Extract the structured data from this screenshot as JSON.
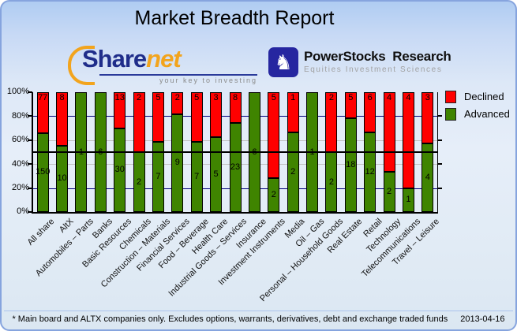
{
  "header": {
    "title": "Market Breadth Report"
  },
  "logos": {
    "sharenet": {
      "part1": "Share",
      "part2": "net",
      "tagline": "your key to investing"
    },
    "powerstocks": {
      "name": "PowerStocks  Research",
      "tagline": "Equities Investment Sciences",
      "icon": "knight-chess-piece"
    }
  },
  "chart_data": {
    "type": "bar",
    "stacked": true,
    "stacking": "percent",
    "title": "Market Breadth Report",
    "categories": [
      "All share",
      "AltX",
      "Automobiles – Parts",
      "Banks",
      "Basic Resources",
      "Chemicals",
      "Construction – Materials",
      "Financial Services",
      "Food – Beverage",
      "Health Care",
      "Industrial Goods – Services",
      "Insurance",
      "Investment Instruments",
      "Media",
      "Oil – Gas",
      "Personal – Household Goods",
      "Real Estate",
      "Retail",
      "Technology",
      "Telecommunications",
      "Travel – Leisure"
    ],
    "series": [
      {
        "name": "Declined",
        "color": "#ff0000",
        "values": [
          77,
          8,
          0,
          0,
          13,
          2,
          5,
          2,
          5,
          3,
          8,
          0,
          5,
          1,
          0,
          2,
          5,
          6,
          4,
          4,
          3
        ]
      },
      {
        "name": "Advanced",
        "color": "#3f8400",
        "values": [
          150,
          10,
          1,
          6,
          30,
          2,
          7,
          9,
          7,
          5,
          23,
          6,
          2,
          2,
          1,
          2,
          18,
          12,
          2,
          1,
          4
        ]
      }
    ],
    "y_ticks": [
      "0%",
      "20%",
      "40%",
      "60%",
      "80%",
      "100%"
    ],
    "ylim": [
      0,
      100
    ],
    "reference_line_pct": 50,
    "grid": {
      "major_color": "#00007d",
      "minor_color": "#c0c0c0"
    },
    "legend_position": "right"
  },
  "footer": {
    "note": "* Main board and ALTX companies only. Excludes options, warrants, derivatives, debt and exchange traded funds",
    "date": "2013-04-16"
  }
}
